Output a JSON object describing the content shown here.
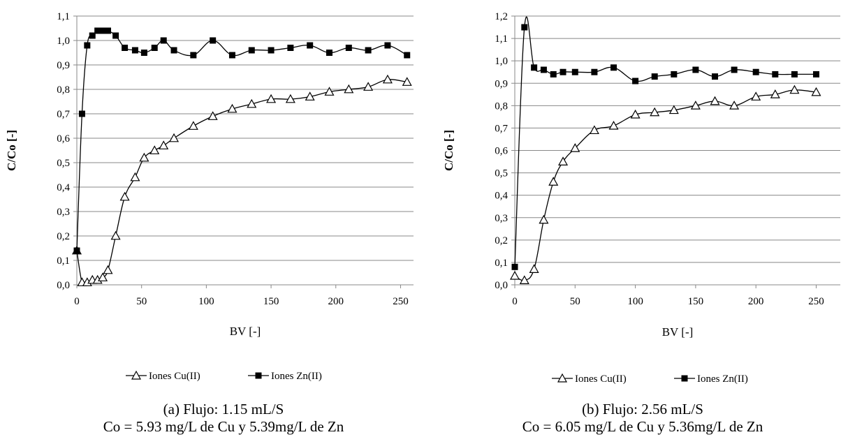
{
  "chart_data": [
    {
      "type": "line",
      "panel": "a",
      "xlabel": "BV [-]",
      "ylabel": "C/Co [-]",
      "xlim": [
        0,
        260
      ],
      "ylim": [
        0,
        1.1
      ],
      "xticks": [
        0,
        50,
        100,
        150,
        200,
        250
      ],
      "xtick_labels": [
        "0",
        "50",
        "100",
        "150",
        "200",
        "250"
      ],
      "yticks": [
        0,
        0.1,
        0.2,
        0.3,
        0.4,
        0.5,
        0.6,
        0.7,
        0.8,
        0.9,
        1.0,
        1.1
      ],
      "ytick_labels": [
        "0,0",
        "0,1",
        "0,2",
        "0,3",
        "0,4",
        "0,5",
        "0,6",
        "0,7",
        "0,8",
        "0,9",
        "1,0",
        "1,1"
      ],
      "grid": true,
      "legend": "bottom",
      "series": [
        {
          "name": "Iones Cu(II)",
          "marker": "triangle-open",
          "x": [
            0,
            4,
            8,
            12,
            16,
            20,
            24,
            30,
            37,
            45,
            52,
            60,
            67,
            75,
            90,
            105,
            120,
            135,
            150,
            165,
            180,
            195,
            210,
            225,
            240,
            255
          ],
          "y": [
            0.14,
            0.01,
            0.01,
            0.02,
            0.02,
            0.03,
            0.06,
            0.2,
            0.36,
            0.44,
            0.52,
            0.55,
            0.57,
            0.6,
            0.65,
            0.69,
            0.72,
            0.74,
            0.76,
            0.76,
            0.77,
            0.79,
            0.8,
            0.81,
            0.84,
            0.83
          ]
        },
        {
          "name": "Iones Zn(II)",
          "marker": "square-filled",
          "x": [
            0,
            4,
            8,
            12,
            16,
            20,
            24,
            30,
            37,
            45,
            52,
            60,
            67,
            75,
            90,
            105,
            120,
            135,
            150,
            165,
            180,
            195,
            210,
            225,
            240,
            255
          ],
          "y": [
            0.14,
            0.7,
            0.98,
            1.02,
            1.04,
            1.04,
            1.04,
            1.02,
            0.97,
            0.96,
            0.95,
            0.97,
            1.0,
            0.96,
            0.94,
            1.0,
            0.94,
            0.96,
            0.96,
            0.97,
            0.98,
            0.95,
            0.97,
            0.96,
            0.98,
            0.94
          ]
        }
      ]
    },
    {
      "type": "line",
      "panel": "b",
      "xlabel": "BV [-]",
      "ylabel": "C/Co [-]",
      "xlim": [
        0,
        270
      ],
      "ylim": [
        0,
        1.2
      ],
      "xticks": [
        0,
        50,
        100,
        150,
        200,
        250
      ],
      "xtick_labels": [
        "0",
        "50",
        "100",
        "150",
        "200",
        "250"
      ],
      "yticks": [
        0,
        0.1,
        0.2,
        0.3,
        0.4,
        0.5,
        0.6,
        0.7,
        0.8,
        0.9,
        1.0,
        1.1,
        1.2
      ],
      "ytick_labels": [
        "0,0",
        "0,1",
        "0,2",
        "0,3",
        "0,4",
        "0,5",
        "0,6",
        "0,7",
        "0,8",
        "0,9",
        "1,0",
        "1,1",
        "1,2"
      ],
      "grid": true,
      "legend": "bottom",
      "series": [
        {
          "name": "Iones Cu(II)",
          "marker": "triangle-open",
          "x": [
            0,
            8,
            16,
            24,
            32,
            40,
            50,
            66,
            82,
            100,
            116,
            132,
            150,
            166,
            182,
            200,
            216,
            232,
            250
          ],
          "y": [
            0.04,
            0.02,
            0.07,
            0.29,
            0.46,
            0.55,
            0.61,
            0.69,
            0.71,
            0.76,
            0.77,
            0.78,
            0.8,
            0.82,
            0.8,
            0.84,
            0.85,
            0.87,
            0.86
          ]
        },
        {
          "name": "Iones Zn(II)",
          "marker": "square-filled",
          "x": [
            0,
            8,
            16,
            24,
            32,
            40,
            50,
            66,
            82,
            100,
            116,
            132,
            150,
            166,
            182,
            200,
            216,
            232,
            250
          ],
          "y": [
            0.08,
            1.15,
            0.97,
            0.96,
            0.94,
            0.95,
            0.95,
            0.95,
            0.97,
            0.91,
            0.93,
            0.94,
            0.96,
            0.93,
            0.96,
            0.95,
            0.94,
            0.94,
            0.94
          ]
        }
      ]
    }
  ],
  "captions": {
    "a": {
      "line1": "(a) Flujo: 1.15 mL/S",
      "line2": "Co = 5.93 mg/L de Cu y 5.39mg/L de Zn"
    },
    "b": {
      "line1": "(b) Flujo: 2.56 mL/S",
      "line2": "Co = 6.05 mg/L de Cu y 5.36mg/L de Zn"
    }
  }
}
